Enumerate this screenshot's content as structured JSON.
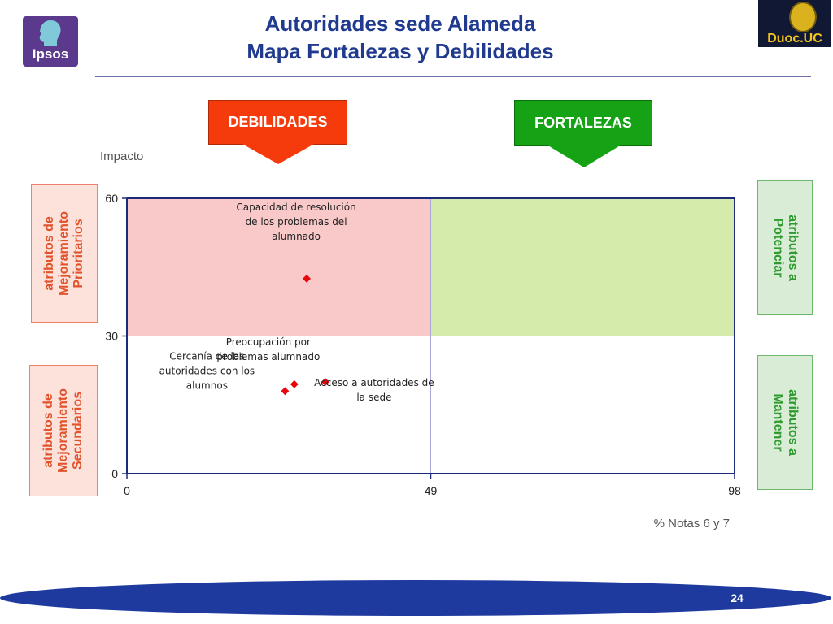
{
  "header": {
    "title_line1": "Autoridades sede Alameda",
    "title_line2": "Mapa Fortalezas y Debilidades",
    "logo_left_text": "Ipsos",
    "logo_right_text": "Duoc.UC"
  },
  "banners": {
    "debilidades": "DEBILIDADES",
    "fortalezas": "FORTALEZAS"
  },
  "side_boxes": {
    "left_top": [
      "atributos de",
      "Mejoramiento",
      "Prioritarios"
    ],
    "left_bottom": [
      "atributos de",
      "Mejoramiento",
      "Secundarios"
    ],
    "right_top": [
      "atributos a",
      "Potenciar"
    ],
    "right_bottom": [
      "atributos a",
      "Mantener"
    ]
  },
  "footer": {
    "page_number": "24"
  },
  "colors": {
    "title": "#1f3a8f",
    "debilidades": "#f53a0c",
    "fortalezas": "#15a315",
    "quadrant_top_left": "#f9c9c9",
    "quadrant_top_right": "#d4ebab",
    "marker": "#e8060a",
    "footer": "#1e3a9e"
  },
  "chart_data": {
    "type": "scatter",
    "xlabel": "% Notas 6 y 7",
    "ylabel": "Impacto",
    "xlim": [
      0,
      98
    ],
    "ylim": [
      0,
      60
    ],
    "xticks": [
      0,
      49,
      98
    ],
    "yticks": [
      0,
      30,
      60
    ],
    "x_divider": 49,
    "y_divider": 30,
    "grid": false,
    "points": [
      {
        "label_lines": [
          "Capacidad de resolución",
          "de los problemas del",
          "alumnado"
        ],
        "x": 29,
        "y": 42.5
      },
      {
        "label_lines": [
          "Preocupación por",
          "problemas alumnado"
        ],
        "x": 27,
        "y": 19.5
      },
      {
        "label_lines": [
          "Cercanía de las",
          "autoridades con los",
          "alumnos"
        ],
        "x": 25.5,
        "y": 18
      },
      {
        "label_lines": [
          "Acceso  a autoridades de",
          "la sede"
        ],
        "x": 32,
        "y": 20
      }
    ]
  }
}
